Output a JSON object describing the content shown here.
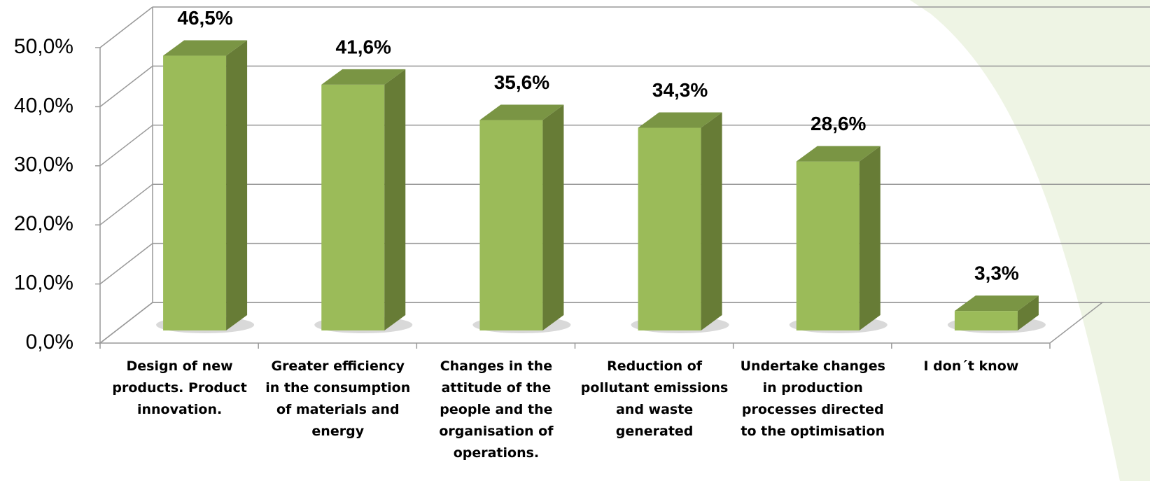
{
  "chart_data": {
    "type": "bar3d",
    "categories": [
      "Design of new products. Product innovation.",
      "Greater efficiency in the consumption of materials and energy",
      "Changes in the attitude of the people and the organisation of operations.",
      "Reduction of pollutant emissions and waste generated",
      "Undertake changes in production processes directed to the optimisation",
      "I don´t know"
    ],
    "values": [
      46.5,
      41.6,
      35.6,
      34.3,
      28.6,
      3.3
    ],
    "value_labels": [
      "46,5%",
      "41,6%",
      "35,6%",
      "34,3%",
      "28,6%",
      "3,3%"
    ],
    "color": "#9bbb59",
    "ylim": [
      0,
      50
    ],
    "yticks": [
      {
        "value": 0,
        "label": "0,0%"
      },
      {
        "value": 10,
        "label": "10,0%"
      },
      {
        "value": 20,
        "label": "20,0%"
      },
      {
        "value": 30,
        "label": "30,0%"
      },
      {
        "value": 40,
        "label": "40,0%"
      },
      {
        "value": 50,
        "label": "50,0%"
      }
    ],
    "grid": true
  }
}
